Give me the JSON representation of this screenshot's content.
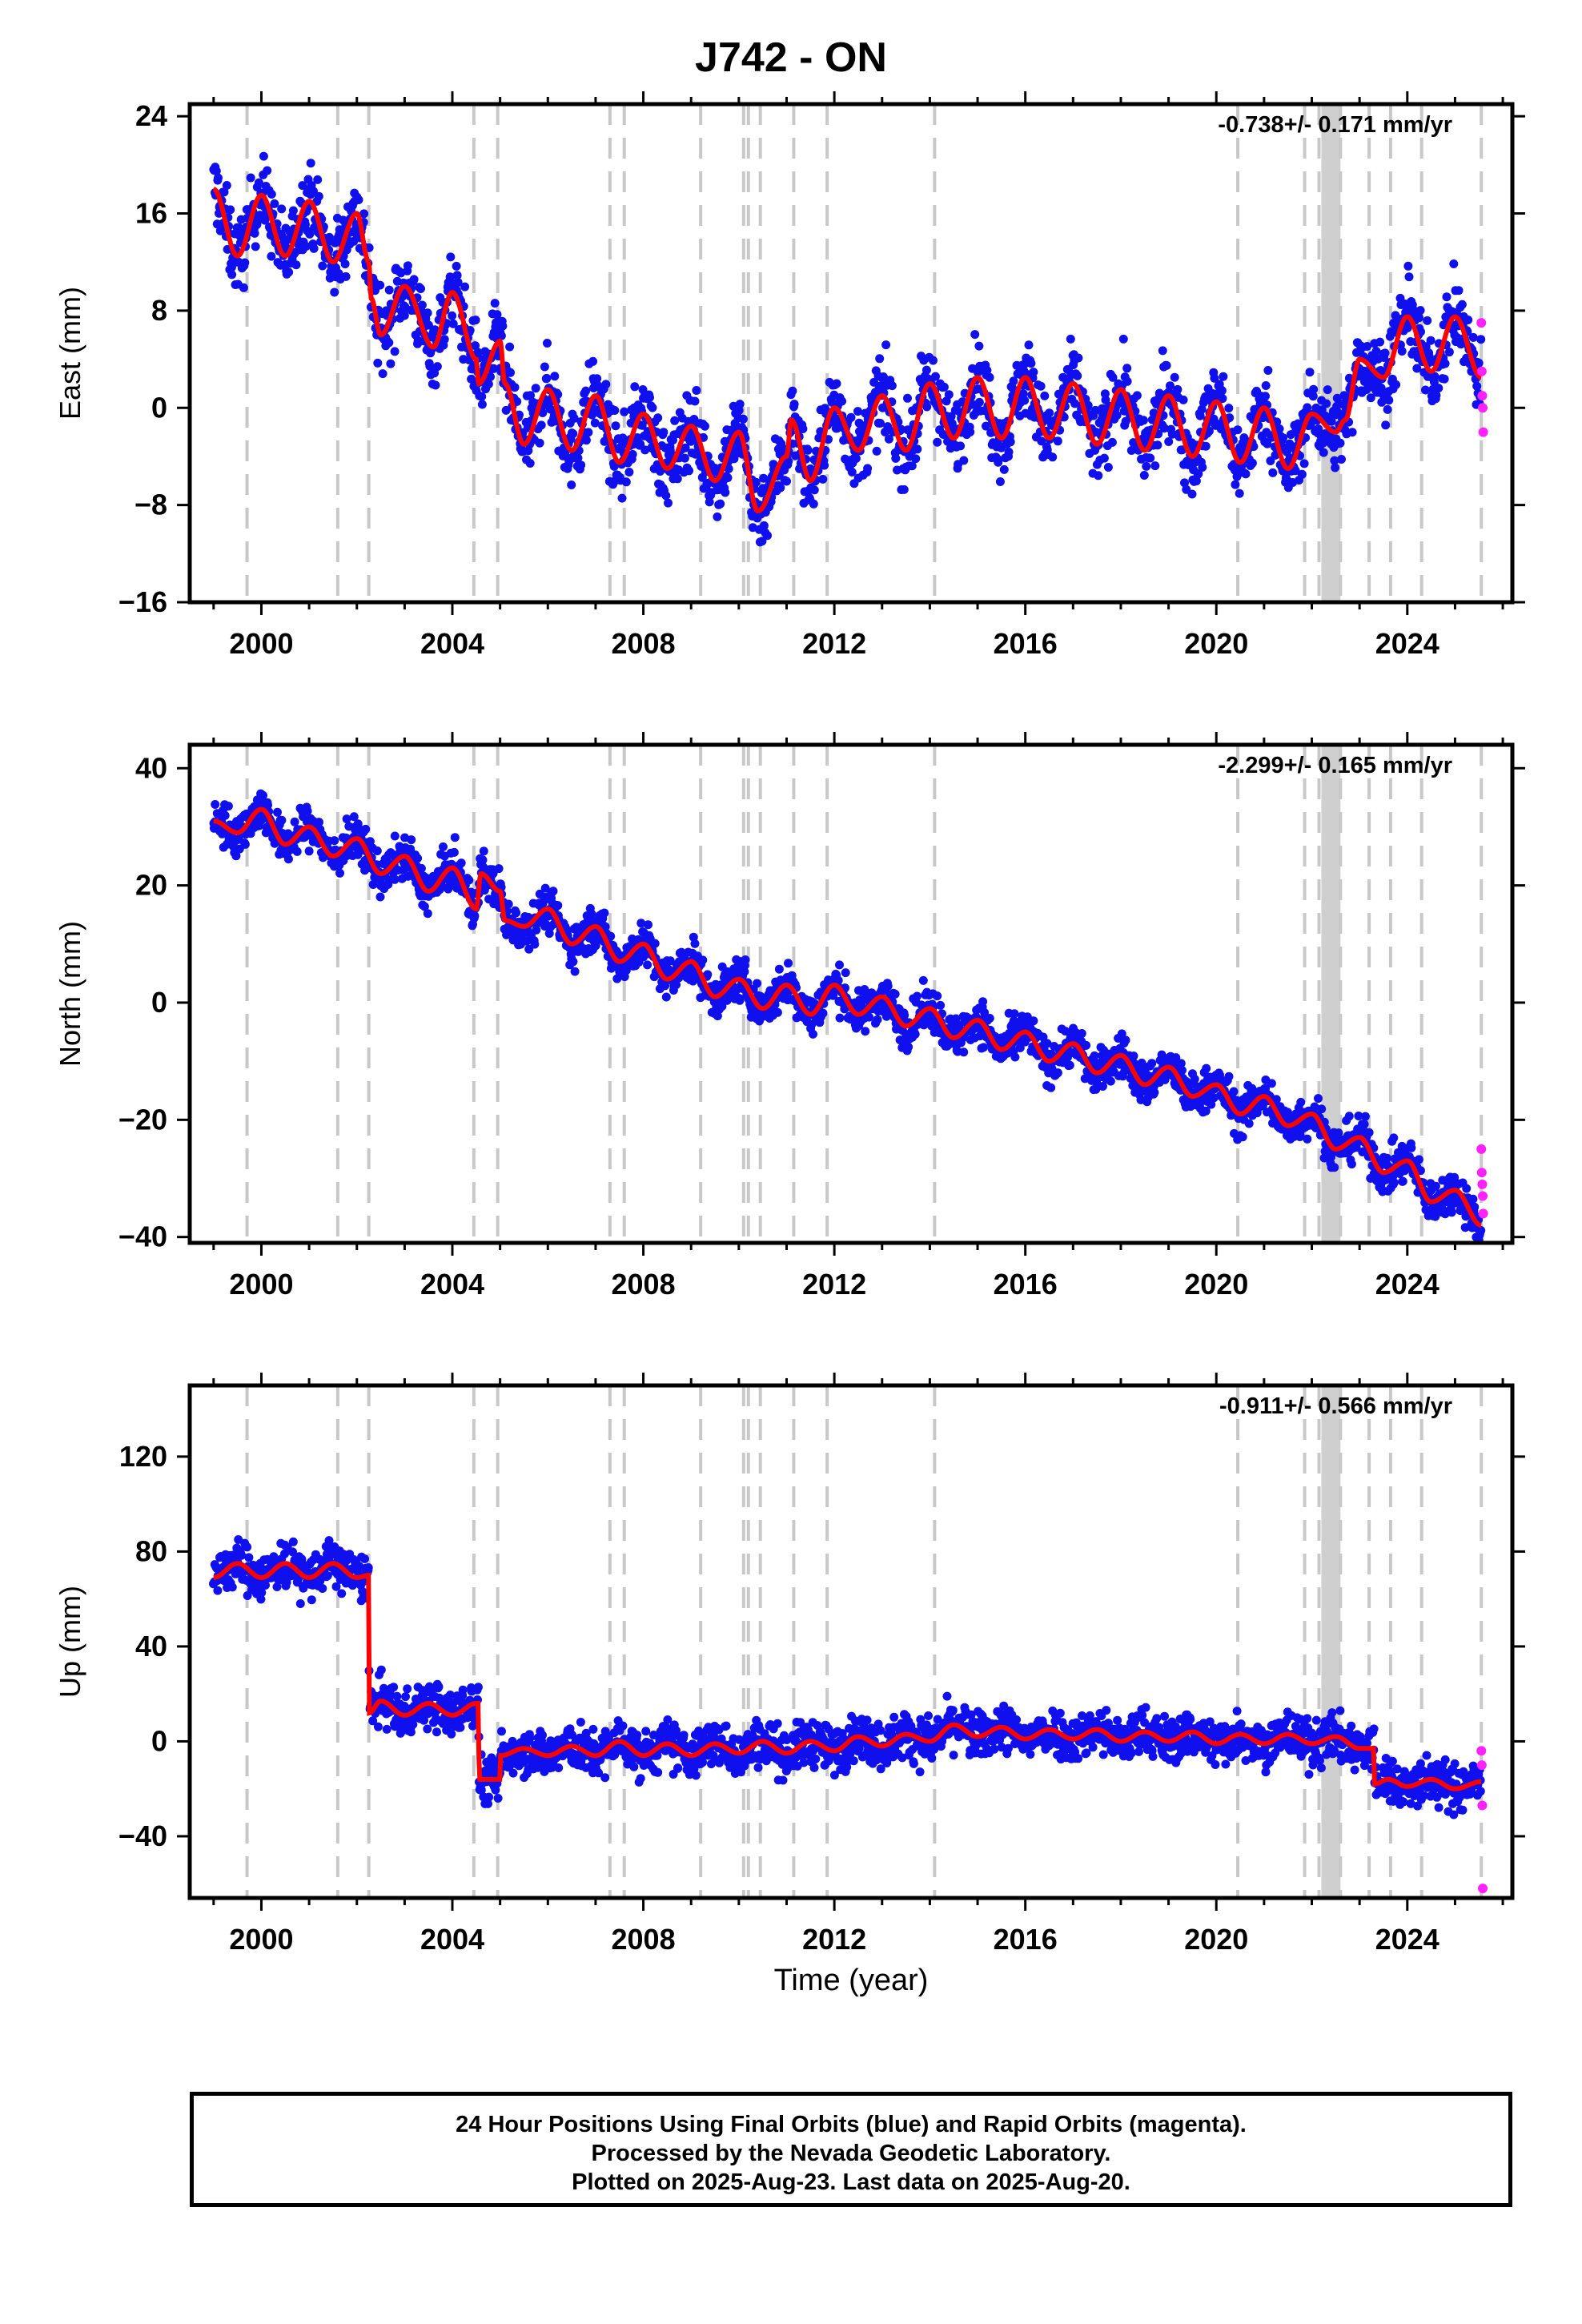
{
  "title": "J742 - ON",
  "xlabel": "Time (year)",
  "footer": {
    "line1": "24 Hour Positions Using Final Orbits (blue) and Rapid Orbits (magenta).",
    "line2": "Processed by the Nevada Geodetic Laboratory.",
    "line3": "Plotted on 2025-Aug-23. Last data on 2025-Aug-20."
  },
  "colors": {
    "final_orbits": "#1010ee",
    "rapid_orbits": "#ff22ff",
    "model": "#ff0000",
    "events": "#c8c8c8"
  },
  "chart_data": [
    {
      "type": "scatter",
      "name": "east",
      "ylabel": "East (mm)",
      "rate": "-0.738+/- 0.171 mm/yr",
      "xlim": [
        1998.5,
        2026.2
      ],
      "ylim": [
        -16,
        25
      ],
      "x_ticks": [
        2000,
        2004,
        2008,
        2012,
        2016,
        2020,
        2024
      ],
      "y_ticks": [
        -16,
        -8,
        0,
        8,
        16,
        24
      ],
      "model_knots": [
        [
          1999.0,
          18
        ],
        [
          1999.5,
          12.5
        ],
        [
          2000.0,
          17.5
        ],
        [
          2000.5,
          12.5
        ],
        [
          2001.0,
          17
        ],
        [
          2001.5,
          12
        ],
        [
          2002.0,
          16
        ],
        [
          2002.25,
          12
        ],
        [
          2002.3,
          9
        ],
        [
          2002.5,
          6
        ],
        [
          2003.0,
          10
        ],
        [
          2003.6,
          5
        ],
        [
          2004.0,
          9.5
        ],
        [
          2004.5,
          4
        ],
        [
          2004.55,
          2
        ],
        [
          2005.0,
          5.5
        ],
        [
          2005.1,
          2
        ],
        [
          2005.5,
          -3
        ],
        [
          2006.0,
          1.5
        ],
        [
          2006.5,
          -3.5
        ],
        [
          2007.0,
          1
        ],
        [
          2007.5,
          -4.5
        ],
        [
          2008.0,
          -0.5
        ],
        [
          2008.5,
          -5
        ],
        [
          2009.0,
          -1.5
        ],
        [
          2009.5,
          -6
        ],
        [
          2010.0,
          -2
        ],
        [
          2010.4,
          -8.5
        ],
        [
          2011.0,
          -4
        ],
        [
          2011.1,
          -1
        ],
        [
          2011.5,
          -6
        ],
        [
          2012.0,
          0
        ],
        [
          2012.5,
          -3.5
        ],
        [
          2013.0,
          1
        ],
        [
          2013.5,
          -3.5
        ],
        [
          2014.0,
          2
        ],
        [
          2014.5,
          -2.5
        ],
        [
          2015.0,
          2.5
        ],
        [
          2015.5,
          -2.5
        ],
        [
          2016.0,
          2.5
        ],
        [
          2016.5,
          -2.5
        ],
        [
          2017.0,
          2
        ],
        [
          2017.5,
          -3
        ],
        [
          2018.0,
          1.5
        ],
        [
          2018.5,
          -3.5
        ],
        [
          2019.0,
          1
        ],
        [
          2019.5,
          -4
        ],
        [
          2020.0,
          0.5
        ],
        [
          2020.5,
          -4.5
        ],
        [
          2021.0,
          0
        ],
        [
          2021.5,
          -5
        ],
        [
          2022.0,
          -0.5
        ],
        [
          2022.5,
          -2
        ],
        [
          2022.7,
          -1
        ],
        [
          2023.0,
          4
        ],
        [
          2023.5,
          2.5
        ],
        [
          2024.0,
          7.5
        ],
        [
          2024.5,
          3
        ],
        [
          2025.0,
          7.5
        ],
        [
          2025.55,
          2.5
        ]
      ],
      "rapid_points": [
        [
          2025.55,
          7
        ],
        [
          2025.56,
          3
        ],
        [
          2025.57,
          1
        ],
        [
          2025.58,
          0
        ],
        [
          2025.59,
          -2
        ]
      ],
      "noise": 2.2
    },
    {
      "type": "scatter",
      "name": "north",
      "ylabel": "North (mm)",
      "rate": "-2.299+/- 0.165 mm/yr",
      "xlim": [
        1998.5,
        2026.2
      ],
      "ylim": [
        -41,
        44
      ],
      "x_ticks": [
        2000,
        2004,
        2008,
        2012,
        2016,
        2020,
        2024
      ],
      "y_ticks": [
        -40,
        -20,
        0,
        20,
        40
      ],
      "model_knots": [
        [
          1999.0,
          31
        ],
        [
          1999.5,
          29
        ],
        [
          2000.0,
          33
        ],
        [
          2000.5,
          27
        ],
        [
          2001.0,
          30
        ],
        [
          2001.5,
          25
        ],
        [
          2002.0,
          28
        ],
        [
          2002.5,
          22
        ],
        [
          2003.0,
          25
        ],
        [
          2003.5,
          19
        ],
        [
          2004.0,
          23
        ],
        [
          2004.5,
          16
        ],
        [
          2004.6,
          22
        ],
        [
          2005.0,
          19
        ],
        [
          2005.1,
          14
        ],
        [
          2005.5,
          13
        ],
        [
          2006.0,
          16
        ],
        [
          2006.5,
          10
        ],
        [
          2007.0,
          13
        ],
        [
          2007.5,
          7
        ],
        [
          2008.0,
          10
        ],
        [
          2008.5,
          4
        ],
        [
          2009.0,
          7
        ],
        [
          2009.5,
          1
        ],
        [
          2010.0,
          4
        ],
        [
          2010.5,
          -1
        ],
        [
          2011.0,
          3
        ],
        [
          2011.5,
          -2
        ],
        [
          2012.0,
          3
        ],
        [
          2012.5,
          -2
        ],
        [
          2013.0,
          1
        ],
        [
          2013.5,
          -4
        ],
        [
          2014.0,
          -1
        ],
        [
          2014.5,
          -6
        ],
        [
          2015.0,
          -3
        ],
        [
          2015.5,
          -8
        ],
        [
          2016.0,
          -5
        ],
        [
          2016.5,
          -10
        ],
        [
          2017.0,
          -7
        ],
        [
          2017.5,
          -12
        ],
        [
          2018.0,
          -9
        ],
        [
          2018.5,
          -14
        ],
        [
          2019.0,
          -11
        ],
        [
          2019.5,
          -16
        ],
        [
          2020.0,
          -14
        ],
        [
          2020.5,
          -19
        ],
        [
          2021.0,
          -16
        ],
        [
          2021.5,
          -21
        ],
        [
          2022.0,
          -19
        ],
        [
          2022.5,
          -25
        ],
        [
          2023.0,
          -23
        ],
        [
          2023.5,
          -29
        ],
        [
          2024.0,
          -27
        ],
        [
          2024.5,
          -34
        ],
        [
          2025.0,
          -32
        ],
        [
          2025.55,
          -38
        ]
      ],
      "rapid_points": [
        [
          2025.55,
          -25
        ],
        [
          2025.56,
          -29
        ],
        [
          2025.57,
          -31
        ],
        [
          2025.58,
          -33
        ],
        [
          2025.59,
          -36
        ]
      ],
      "noise": 2.6
    },
    {
      "type": "scatter",
      "name": "up",
      "ylabel": "Up (mm)",
      "rate": "-0.911+/- 0.566 mm/yr",
      "xlim": [
        1998.5,
        2026.2
      ],
      "ylim": [
        -66,
        150
      ],
      "x_ticks": [
        2000,
        2004,
        2008,
        2012,
        2016,
        2020,
        2024
      ],
      "y_ticks": [
        -40,
        0,
        40,
        80,
        120
      ],
      "model_knots": [
        [
          1999.0,
          69
        ],
        [
          1999.5,
          75
        ],
        [
          2000.0,
          69
        ],
        [
          2000.5,
          75
        ],
        [
          2001.0,
          69
        ],
        [
          2001.5,
          75
        ],
        [
          2002.0,
          69
        ],
        [
          2002.25,
          70
        ],
        [
          2002.26,
          12
        ],
        [
          2002.5,
          17
        ],
        [
          2003.0,
          11
        ],
        [
          2003.5,
          16
        ],
        [
          2004.0,
          11
        ],
        [
          2004.5,
          16
        ],
        [
          2004.55,
          16
        ],
        [
          2004.56,
          -16
        ],
        [
          2005.0,
          -16
        ],
        [
          2005.01,
          -6
        ],
        [
          2005.5,
          -3
        ],
        [
          2006.0,
          -6
        ],
        [
          2006.5,
          -2
        ],
        [
          2007.0,
          -6
        ],
        [
          2007.5,
          0
        ],
        [
          2008.0,
          -6
        ],
        [
          2008.5,
          -1
        ],
        [
          2009.0,
          -6
        ],
        [
          2009.5,
          -1
        ],
        [
          2010.0,
          -5
        ],
        [
          2010.5,
          0
        ],
        [
          2011.0,
          -5
        ],
        [
          2011.5,
          0
        ],
        [
          2012.0,
          -4
        ],
        [
          2012.5,
          2
        ],
        [
          2013.0,
          -2
        ],
        [
          2013.5,
          3
        ],
        [
          2014.0,
          0
        ],
        [
          2014.5,
          7
        ],
        [
          2015.0,
          2
        ],
        [
          2015.5,
          6
        ],
        [
          2016.0,
          1
        ],
        [
          2016.5,
          5
        ],
        [
          2017.0,
          1
        ],
        [
          2017.5,
          5
        ],
        [
          2018.0,
          0
        ],
        [
          2018.5,
          4
        ],
        [
          2019.0,
          0
        ],
        [
          2019.5,
          4
        ],
        [
          2020.0,
          -1
        ],
        [
          2020.5,
          3
        ],
        [
          2021.0,
          -1
        ],
        [
          2021.5,
          3
        ],
        [
          2022.0,
          -1
        ],
        [
          2022.5,
          2
        ],
        [
          2023.0,
          -3
        ],
        [
          2023.3,
          -3
        ],
        [
          2023.31,
          -18
        ],
        [
          2023.6,
          -16
        ],
        [
          2024.0,
          -19
        ],
        [
          2024.5,
          -16
        ],
        [
          2025.0,
          -20
        ],
        [
          2025.55,
          -17
        ]
      ],
      "rapid_points": [
        [
          2025.55,
          -4
        ],
        [
          2025.56,
          -10
        ],
        [
          2025.57,
          -27
        ],
        [
          2025.58,
          -62
        ]
      ],
      "noise": 7
    }
  ],
  "event_lines": [
    1999.7,
    2001.6,
    2002.25,
    2004.45,
    2004.95,
    2007.3,
    2007.6,
    2009.2,
    2010.1,
    2010.2,
    2010.45,
    2011.15,
    2011.85,
    2014.1,
    2020.45,
    2021.85,
    2022.15,
    2022.6,
    2023.2,
    2023.65,
    2024.3,
    2025.55
  ],
  "shaded_band": [
    2022.2,
    2022.6
  ]
}
